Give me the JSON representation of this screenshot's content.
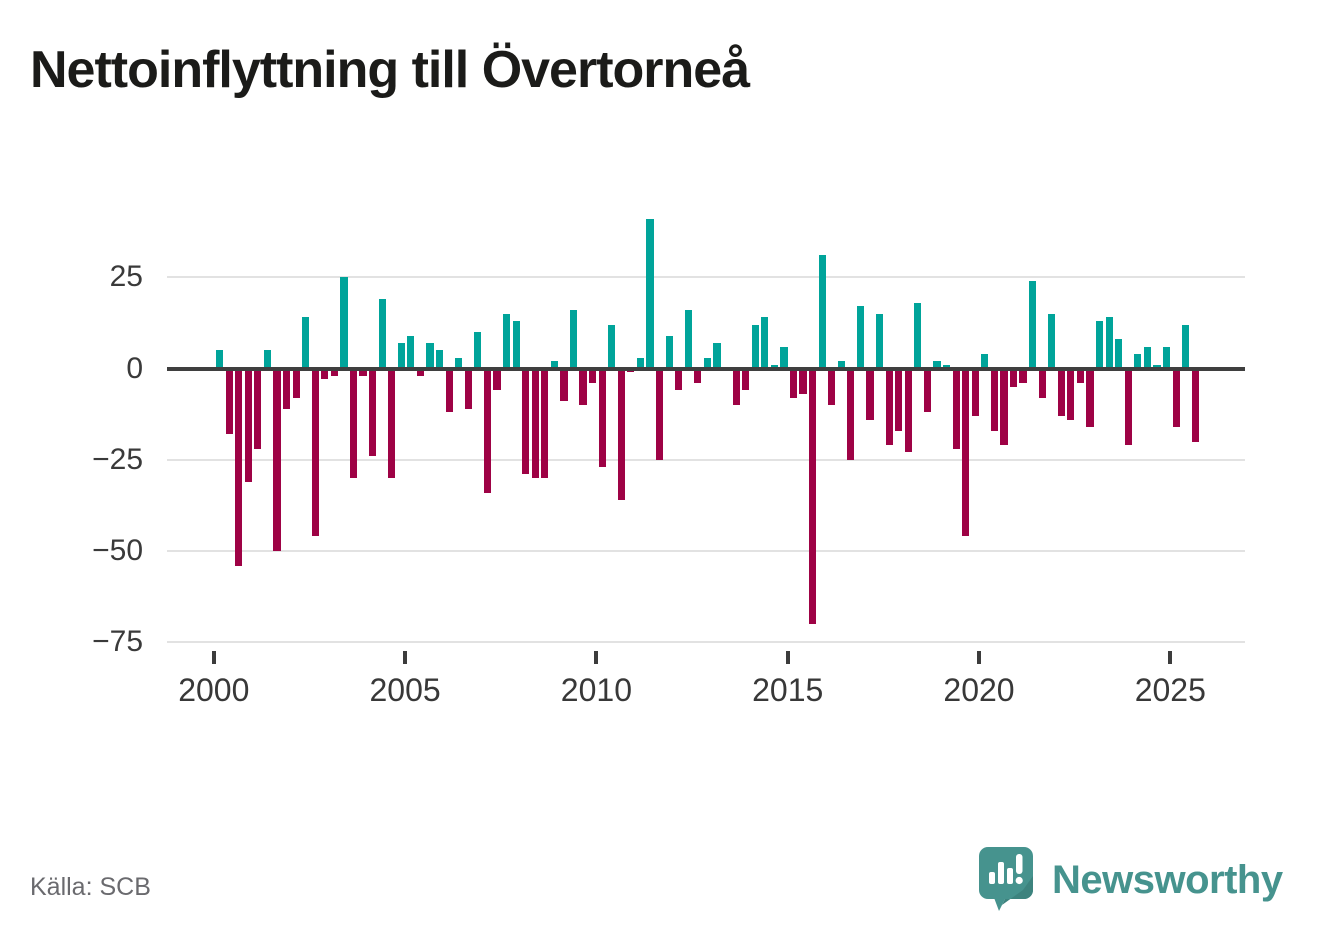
{
  "title": "Nettoinflyttning till Övertorneå",
  "source": "Källa: SCB",
  "logo": {
    "name": "Newsworthy",
    "color": "#46938e"
  },
  "chart_data": {
    "type": "bar",
    "title": "Nettoinflyttning till Övertorneå",
    "frequency": "quarterly",
    "start": "2000Q1",
    "end": "2025Q3",
    "values": [
      5,
      -18,
      -54,
      -31,
      -22,
      5,
      -50,
      -11,
      -8,
      14,
      -46,
      -3,
      -2,
      25,
      -30,
      -2,
      -24,
      19,
      -30,
      7,
      9,
      -2,
      7,
      5,
      -12,
      3,
      -11,
      10,
      -34,
      -6,
      15,
      13,
      -29,
      -30,
      -30,
      2,
      -9,
      16,
      -10,
      -4,
      -27,
      12,
      -36,
      -1,
      3,
      41,
      -25,
      9,
      -6,
      16,
      -4,
      3,
      7,
      0,
      -10,
      -6,
      12,
      14,
      1,
      6,
      -8,
      -7,
      -70,
      31,
      -10,
      2,
      -25,
      17,
      -14,
      15,
      -21,
      -17,
      -23,
      18,
      -12,
      2,
      1,
      -22,
      -46,
      -13,
      4,
      -17,
      -21,
      -5,
      -4,
      24,
      -8,
      15,
      -13,
      -14,
      -4,
      -16,
      13,
      14,
      8,
      -21,
      4,
      6,
      1,
      6,
      -16,
      12,
      -20
    ],
    "y_ticks": [
      25,
      0,
      -25,
      -50,
      -75
    ],
    "y_tick_labels": [
      "25",
      "0",
      "−25",
      "−50",
      "−75"
    ],
    "x_ticks": [
      2000,
      2005,
      2010,
      2015,
      2020,
      2025
    ],
    "x_tick_labels": [
      "2000",
      "2005",
      "2010",
      "2015",
      "2020",
      "2025"
    ],
    "ylim": [
      -80,
      45
    ],
    "grid": true,
    "legend": "none",
    "colors": {
      "positive": "#00a49a",
      "negative": "#9e0245",
      "zero_line": "#3f3f3f",
      "gridline": "#e2e2e2"
    }
  }
}
